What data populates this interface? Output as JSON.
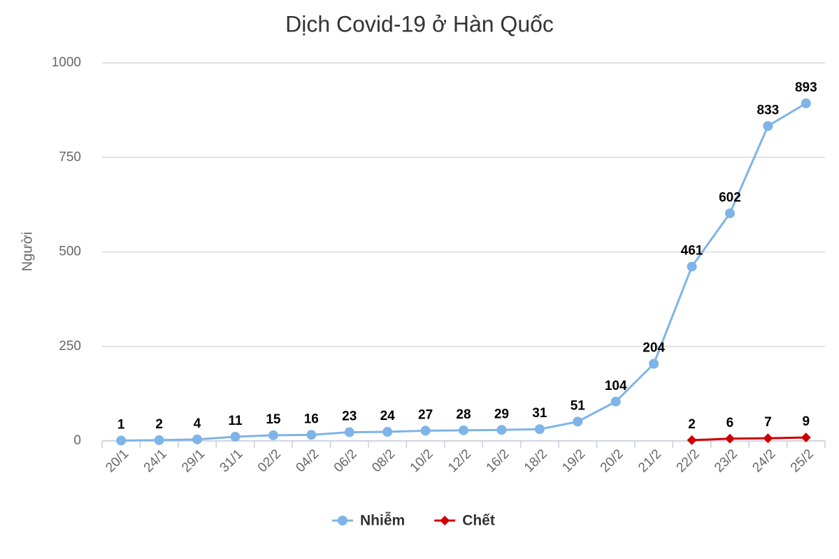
{
  "chart_data": {
    "type": "line",
    "title": "Dịch Covid-19 ở Hàn Quốc",
    "y_label": "Người",
    "categories": [
      "20/1",
      "24/1",
      "29/1",
      "31/1",
      "02/2",
      "04/2",
      "06/2",
      "08/2",
      "10/2",
      "12/2",
      "16/2",
      "18/2",
      "19/2",
      "20/2",
      "21/2",
      "22/2",
      "23/2",
      "24/2",
      "25/2"
    ],
    "series": [
      {
        "name": "Nhiễm",
        "color": "#7eb4e8",
        "marker": "circle",
        "values": [
          1,
          2,
          4,
          11,
          15,
          16,
          23,
          24,
          27,
          28,
          29,
          31,
          51,
          104,
          204,
          461,
          602,
          833,
          893
        ]
      },
      {
        "name": "Chết",
        "color": "#d00000",
        "marker": "diamond",
        "values": [
          null,
          null,
          null,
          null,
          null,
          null,
          null,
          null,
          null,
          null,
          null,
          null,
          null,
          null,
          null,
          2,
          6,
          7,
          9
        ]
      }
    ],
    "ylim": [
      0,
      1000
    ],
    "yticks": [
      0,
      250,
      500,
      750,
      1000
    ],
    "grid": true,
    "legend": "bottom",
    "data_labels": true
  }
}
